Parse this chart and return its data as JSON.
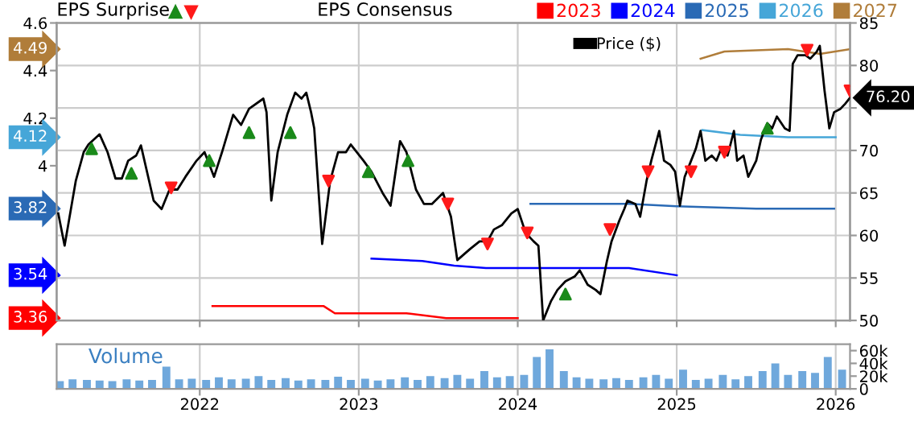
{
  "chart_data": [
    {
      "type": "line",
      "legend": "top",
      "legend_title": "EPS Consensus",
      "grid": true,
      "tick_labels": "y",
      "xlim": [
        2021.1,
        2026.09
      ],
      "xticks": [
        2022,
        2023,
        2024,
        2025,
        2026
      ],
      "ylim": [
        3.35,
        4.6
      ],
      "yticks": [
        4,
        4.2,
        4.4,
        4.6
      ],
      "y2lim": [
        50,
        85
      ],
      "y2ticks": [
        50,
        55,
        60,
        65,
        70,
        {
          "value": 75,
          "label": null
        },
        80,
        85
      ],
      "annotations": [
        "EPS Surprise",
        "4.49",
        "4.12",
        "3.82",
        "3.54",
        "3.36"
      ],
      "series": [
        {
          "name": "2023",
          "color": "#ff0000",
          "x": [
            2022.08,
            2022.78,
            2022.85,
            2023.0,
            2023.3,
            2023.55,
            2023.7,
            2024.0
          ],
          "values": [
            3.41,
            3.41,
            3.38,
            3.38,
            3.38,
            3.36,
            3.36,
            3.36
          ]
        },
        {
          "name": "2024",
          "color": "#0000ff",
          "x": [
            2023.08,
            2023.4,
            2023.6,
            2023.8,
            2024.2,
            2024.7,
            2025.0
          ],
          "values": [
            3.61,
            3.6,
            3.58,
            3.57,
            3.57,
            3.57,
            3.54
          ]
        },
        {
          "name": "2025",
          "color": "#2a6ab5",
          "x": [
            2024.08,
            2024.4,
            2024.7,
            2025.0,
            2025.5,
            2025.99
          ],
          "values": [
            3.84,
            3.84,
            3.84,
            3.83,
            3.82,
            3.82
          ]
        },
        {
          "name": "2026",
          "color": "#46a6d8",
          "x": [
            2025.16,
            2025.4,
            2025.7,
            2026.0
          ],
          "values": [
            4.15,
            4.13,
            4.12,
            4.12
          ]
        },
        {
          "name": "2027",
          "color": "#b07d3a",
          "x": [
            2025.15,
            2025.3,
            2025.7,
            2025.9,
            2026.09
          ],
          "values": [
            4.45,
            4.48,
            4.49,
            4.47,
            4.49
          ]
        },
        {
          "name": "Price ($)",
          "color": "#000000",
          "axis": "y2",
          "x": [
            2021.11,
            2021.15,
            2021.22,
            2021.27,
            2021.3,
            2021.37,
            2021.42,
            2021.47,
            2021.51,
            2021.55,
            2021.6,
            2021.63,
            2021.71,
            2021.76,
            2021.81,
            2021.86,
            2021.91,
            2021.98,
            2022.03,
            2022.09,
            2022.14,
            2022.21,
            2022.26,
            2022.31,
            2022.4,
            2022.42,
            2022.45,
            2022.49,
            2022.55,
            2022.6,
            2022.64,
            2022.67,
            2022.7,
            2022.72,
            2022.77,
            2022.82,
            2022.87,
            2022.92,
            2022.95,
            2023.03,
            2023.08,
            2023.15,
            2023.2,
            2023.26,
            2023.3,
            2023.36,
            2023.41,
            2023.46,
            2023.53,
            2023.58,
            2023.62,
            2023.7,
            2023.76,
            2023.81,
            2023.85,
            2023.9,
            2023.96,
            2024.0,
            2024.05,
            2024.1,
            2024.13,
            2024.16,
            2024.21,
            2024.25,
            2024.3,
            2024.36,
            2024.39,
            2024.44,
            2024.49,
            2024.52,
            2024.56,
            2024.59,
            2024.64,
            2024.67,
            2024.69,
            2024.74,
            2024.77,
            2024.81,
            2024.84,
            2024.89,
            2024.92,
            2024.96,
            2024.99,
            2025.02,
            2025.05,
            2025.08,
            2025.12,
            2025.15,
            2025.18,
            2025.22,
            2025.25,
            2025.28,
            2025.32,
            2025.36,
            2025.38,
            2025.42,
            2025.45,
            2025.5,
            2025.53,
            2025.57,
            2025.6,
            2025.63,
            2025.68,
            2025.71,
            2025.73,
            2025.76,
            2025.81,
            2025.84,
            2025.88,
            2025.9,
            2025.93,
            2025.96,
            2025.99,
            2026.03,
            2026.06,
            2026.09
          ],
          "values": [
            62.6,
            58.8,
            66.4,
            69.8,
            70.7,
            71.9,
            69.8,
            66.7,
            66.7,
            68.8,
            69.4,
            70.6,
            64.1,
            63.1,
            65.4,
            65.4,
            66.9,
            68.8,
            69.8,
            66.9,
            69.8,
            74.2,
            73.0,
            74.9,
            76.1,
            74.5,
            64.1,
            69.8,
            74.2,
            76.8,
            76.1,
            76.8,
            74.5,
            72.6,
            59.0,
            66.4,
            69.8,
            69.8,
            70.7,
            68.8,
            67.5,
            65.0,
            63.5,
            71.1,
            69.8,
            65.4,
            63.7,
            63.7,
            65.0,
            62.2,
            57.1,
            58.4,
            59.3,
            59.3,
            60.7,
            61.2,
            62.6,
            63.1,
            60.3,
            59.3,
            58.8,
            50.0,
            52.3,
            53.6,
            54.6,
            55.2,
            55.9,
            54.2,
            53.6,
            53.1,
            56.9,
            59.3,
            61.8,
            63.1,
            64.1,
            63.7,
            62.2,
            66.4,
            68.8,
            72.3,
            68.8,
            68.3,
            67.5,
            63.5,
            66.9,
            68.3,
            70.2,
            72.3,
            68.8,
            69.4,
            68.8,
            70.2,
            69.4,
            72.3,
            68.8,
            69.4,
            66.9,
            68.8,
            71.3,
            73.2,
            72.6,
            74.0,
            72.6,
            72.3,
            80.2,
            81.2,
            81.2,
            80.8,
            81.6,
            82.3,
            77.0,
            72.6,
            74.5,
            74.9,
            75.5,
            76.2
          ],
          "value_labels": [
            null,
            null,
            null,
            null,
            null,
            null,
            null,
            null,
            null,
            null,
            null,
            null,
            null,
            null,
            null,
            null,
            null,
            null,
            null,
            null,
            null,
            null,
            null,
            null,
            null,
            null,
            null,
            null,
            null,
            null,
            null,
            null,
            null,
            null,
            null,
            null,
            null,
            null,
            null,
            null,
            null,
            null,
            null,
            null,
            null,
            null,
            null,
            null,
            null,
            null,
            null,
            null,
            null,
            null,
            null,
            null,
            null,
            null,
            null,
            null,
            null,
            null,
            null,
            null,
            null,
            null,
            null,
            null,
            null,
            null,
            null,
            null,
            null,
            null,
            null,
            null,
            null,
            null,
            null,
            null,
            null,
            null,
            null,
            null,
            null,
            null,
            null,
            null,
            null,
            null,
            null,
            null,
            null,
            null,
            null,
            null,
            null,
            null,
            null,
            null,
            null,
            null,
            null,
            null,
            null,
            null,
            null,
            null,
            null,
            null,
            null,
            null,
            null,
            null,
            null,
            "76.20"
          ]
        },
        {
          "type": "scatter",
          "marker": "triangle",
          "color": "#1a8a1a",
          "axis": "y2",
          "x": [
            2021.32,
            2021.57,
            2022.06,
            2022.31,
            2022.57,
            2023.06,
            2023.31,
            2024.3,
            2025.57
          ],
          "values": [
            70.2,
            67.3,
            68.8,
            72.1,
            72.1,
            67.5,
            68.8,
            53.1,
            72.6
          ]
        },
        {
          "type": "scatter",
          "marker": "triangle-down",
          "color": "#ff1a1a",
          "axis": "y2",
          "x": [
            2021.82,
            2022.81,
            2023.56,
            2023.81,
            2024.06,
            2024.58,
            2024.82,
            2025.09,
            2025.3,
            2025.82,
            2026.09
          ],
          "values": [
            65.6,
            66.4,
            63.7,
            59.0,
            60.3,
            60.7,
            67.5,
            67.5,
            69.8,
            81.8,
            77.0
          ]
        }
      ]
    },
    {
      "type": "bar",
      "title": "Volume",
      "grid": "x",
      "xlim": [
        2021.1,
        2026.09
      ],
      "xticks": [
        2022,
        2023,
        2024,
        2025,
        2026
      ],
      "ylim": [
        0,
        70000
      ],
      "yticks": [
        0,
        {
          "value": 20000,
          "label": "20k"
        },
        {
          "value": 40000,
          "label": "40k"
        },
        {
          "value": 60000,
          "label": "60k"
        }
      ],
      "series": [
        {
          "color": "#6fa8dc",
          "x": [
            2021.12,
            2021.2,
            2021.29,
            2021.37,
            2021.45,
            2021.54,
            2021.62,
            2021.7,
            2021.79,
            2021.87,
            2021.95,
            2022.04,
            2022.12,
            2022.2,
            2022.29,
            2022.37,
            2022.45,
            2022.54,
            2022.62,
            2022.7,
            2022.79,
            2022.87,
            2022.95,
            2023.04,
            2023.12,
            2023.2,
            2023.29,
            2023.37,
            2023.45,
            2023.54,
            2023.62,
            2023.7,
            2023.79,
            2023.87,
            2023.95,
            2024.04,
            2024.12,
            2024.2,
            2024.29,
            2024.37,
            2024.45,
            2024.54,
            2024.62,
            2024.7,
            2024.79,
            2024.87,
            2024.95,
            2025.04,
            2025.12,
            2025.2,
            2025.29,
            2025.37,
            2025.45,
            2025.54,
            2025.62,
            2025.7,
            2025.79,
            2025.87,
            2025.95,
            2026.04
          ],
          "values": [
            12000,
            15000,
            14000,
            13000,
            12000,
            15000,
            13000,
            14000,
            35000,
            15000,
            16000,
            14000,
            18000,
            15000,
            16000,
            20000,
            14000,
            17000,
            13000,
            15000,
            14000,
            19000,
            14000,
            16000,
            13000,
            15000,
            18000,
            14000,
            20000,
            17000,
            22000,
            16000,
            28000,
            18000,
            20000,
            22000,
            50000,
            62000,
            28000,
            18000,
            16000,
            15000,
            17000,
            14000,
            18000,
            22000,
            16000,
            30000,
            14000,
            16000,
            22000,
            15000,
            20000,
            28000,
            40000,
            22000,
            28000,
            25000,
            50000,
            30000
          ]
        }
      ]
    }
  ]
}
